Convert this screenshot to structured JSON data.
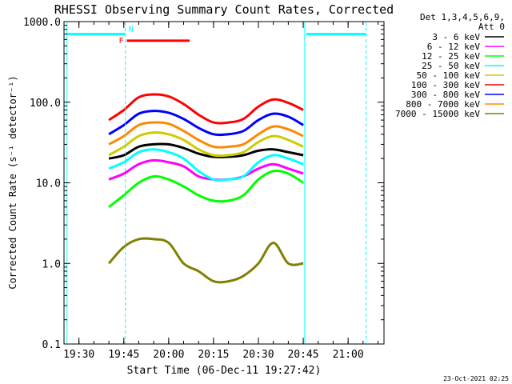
{
  "chart_data": {
    "type": "line",
    "title": "RHESSI Observing Summary Count Rates, Corrected",
    "xlabel": "Start Time (06-Dec-11 19:27:42)",
    "ylabel": "Corrected Count Rate (s⁻¹ detector⁻¹)",
    "yscale": "log",
    "ylim": [
      0.1,
      1000.0
    ],
    "xlim": [
      "19:25",
      "21:12"
    ],
    "xticks": [
      "19:30",
      "19:45",
      "20:00",
      "20:15",
      "20:30",
      "20:45",
      "21:00"
    ],
    "yticks": [
      "0.1",
      "1.0",
      "10.0",
      "100.0",
      "1000.0"
    ],
    "legend_placement": "top-right outside",
    "legend_header": [
      "Det 1,3,4,5,6,9,",
      "Att 0"
    ],
    "timestamp": "23-Oct-2021 02:25",
    "x": [
      "19:40",
      "19:45",
      "19:50",
      "19:55",
      "20:00",
      "20:05",
      "20:10",
      "20:15",
      "20:20",
      "20:25",
      "20:30",
      "20:35",
      "20:40",
      "20:45"
    ],
    "series": [
      {
        "name": "3 - 6 keV",
        "color": "#000000",
        "values": [
          20,
          22,
          28,
          30,
          30,
          27,
          23,
          21,
          21,
          22,
          25,
          26,
          24,
          22
        ]
      },
      {
        "name": "6 - 12 keV",
        "color": "#ff00ff",
        "values": [
          11,
          13,
          17,
          19,
          18,
          16,
          12,
          11,
          11,
          12,
          15,
          17,
          15,
          13
        ]
      },
      {
        "name": "12 - 25 keV",
        "color": "#00ff00",
        "values": [
          5,
          7,
          10,
          12,
          11,
          9,
          7,
          6,
          6,
          7,
          11,
          14,
          13,
          10
        ]
      },
      {
        "name": "25 - 50 keV",
        "color": "#00ffff",
        "values": [
          15,
          18,
          24,
          26,
          24,
          20,
          14,
          11,
          11,
          12,
          18,
          22,
          20,
          17
        ]
      },
      {
        "name": "50 - 100 keV",
        "color": "#cccc00",
        "values": [
          22,
          28,
          38,
          42,
          40,
          34,
          26,
          22,
          22,
          24,
          32,
          38,
          34,
          28
        ]
      },
      {
        "name": "100 - 300 keV",
        "color": "#ff0000",
        "values": [
          60,
          80,
          115,
          125,
          118,
          95,
          70,
          56,
          56,
          62,
          88,
          108,
          98,
          80
        ]
      },
      {
        "name": "300 - 800 keV",
        "color": "#0000ff",
        "values": [
          40,
          52,
          72,
          78,
          74,
          62,
          48,
          40,
          40,
          44,
          60,
          72,
          66,
          52
        ]
      },
      {
        "name": "800 - 7000 keV",
        "color": "#ff8800",
        "values": [
          30,
          38,
          52,
          56,
          54,
          44,
          34,
          28,
          28,
          30,
          40,
          50,
          46,
          38
        ]
      },
      {
        "name": "7000 - 15000 keV",
        "color": "#808000",
        "values": [
          1.0,
          1.6,
          2.0,
          2.0,
          1.8,
          1.0,
          0.8,
          0.6,
          0.6,
          0.7,
          1.0,
          1.8,
          1.0,
          1.0
        ]
      }
    ],
    "annotations": [
      {
        "type": "flag_bar",
        "label": "N",
        "color": "#00ffff",
        "level": 700,
        "segments": [
          [
            "19:26",
            "19:45:30"
          ],
          [
            "20:46",
            "21:06"
          ]
        ]
      },
      {
        "type": "flag_bar",
        "label": "F",
        "color": "#ff0000",
        "level": 580,
        "segments": [
          [
            "19:46",
            "20:07"
          ]
        ]
      },
      {
        "type": "vline",
        "style": "solid",
        "color": "#00ffff",
        "x": [
          "19:26",
          "20:45:30"
        ]
      },
      {
        "type": "vline",
        "style": "dashed",
        "color": "#00ffff",
        "x": [
          "19:45:30",
          "21:06"
        ]
      }
    ]
  }
}
